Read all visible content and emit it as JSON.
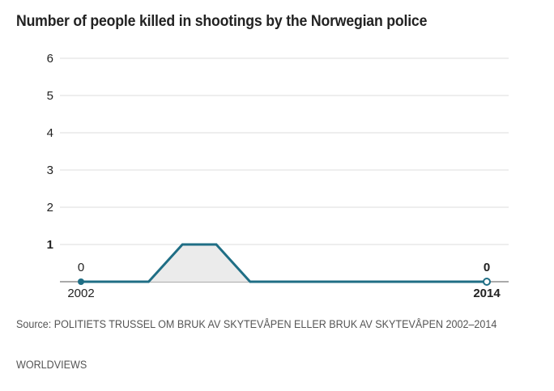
{
  "title": "Number of people killed in shootings by the Norwegian police",
  "source": "Source: POLITIETS TRUSSEL OM BRUK AV SKYTEVÅPEN ELLER BRUK AV SKYTEVÅPEN 2002–2014",
  "credit": "WORLDVIEWS",
  "colors": {
    "line": "#1f6e85",
    "area": "#ebebeb",
    "grid": "#dddddd",
    "text": "#222222"
  },
  "chart_data": {
    "type": "area",
    "title": "Number of people killed in shootings by the Norwegian police",
    "xlabel": "",
    "ylabel": "",
    "x": [
      2002,
      2003,
      2004,
      2005,
      2006,
      2007,
      2008,
      2009,
      2010,
      2011,
      2012,
      2013,
      2014
    ],
    "series": [
      {
        "name": "People killed",
        "values": [
          0,
          0,
          0,
          1,
          1,
          0,
          0,
          0,
          0,
          0,
          0,
          0,
          0
        ]
      }
    ],
    "ylim": [
      0,
      6
    ],
    "yticks": [
      "1",
      "2",
      "3",
      "4",
      "5",
      "6"
    ],
    "xtick_labels": [
      "2002",
      "2014"
    ],
    "annotations": [
      {
        "x": 2002,
        "label": "0"
      },
      {
        "x": 2014,
        "label": "0"
      }
    ],
    "grid": true,
    "legend": "none"
  }
}
